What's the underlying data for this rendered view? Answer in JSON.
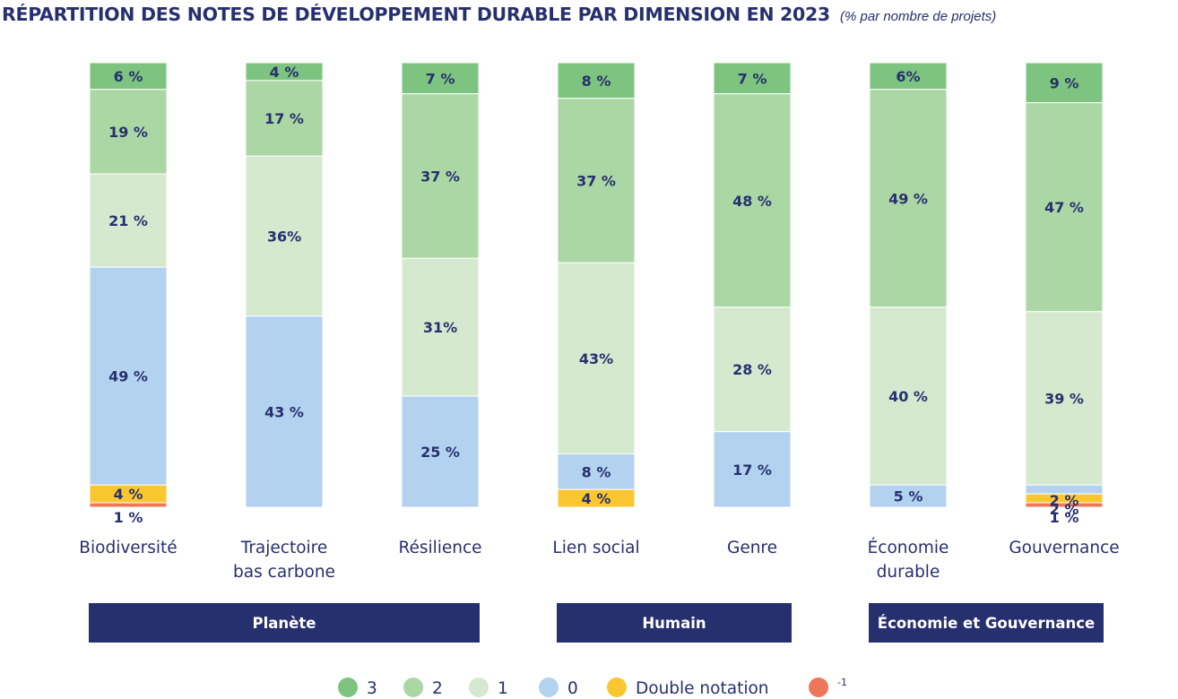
{
  "title": "RÉPARTITION DES NOTES DE DÉVELOPPEMENT DURABLE PAR DIMENSION EN 2023",
  "subtitle": "(% par nombre de projets)",
  "colors": {
    "3": "#7cc47f",
    "2": "#abd7a5",
    "1": "#d5e9cf",
    "0": "#b3d2f0",
    "double": "#fbc731",
    "minus1": "#ed775a",
    "text": "#27306e",
    "group": "#27306e"
  },
  "chart_data": {
    "type": "bar",
    "stacked": true,
    "categories": [
      [
        "Biodiversité"
      ],
      [
        "Trajectoire",
        "bas carbone"
      ],
      [
        "Résilience"
      ],
      [
        "Lien social"
      ],
      [
        "Genre"
      ],
      [
        "Économie",
        "durable"
      ],
      [
        "Gouvernance"
      ]
    ],
    "series": [
      {
        "name": "3",
        "key": "3",
        "values": [
          6,
          4,
          7,
          8,
          7,
          6,
          9
        ],
        "labels": [
          "6 %",
          "4 %",
          "7 %",
          "8 %",
          "7 %",
          "6%",
          "9 %"
        ]
      },
      {
        "name": "2",
        "key": "2",
        "values": [
          19,
          17,
          37,
          37,
          48,
          49,
          47
        ],
        "labels": [
          "19 %",
          "17 %",
          "37 %",
          "37 %",
          "48 %",
          "49 %",
          "47 %"
        ]
      },
      {
        "name": "1",
        "key": "1",
        "values": [
          21,
          36,
          31,
          43,
          28,
          40,
          39
        ],
        "labels": [
          "21 %",
          "36%",
          "31%",
          "43%",
          "28 %",
          "40 %",
          "39 %"
        ]
      },
      {
        "name": "0",
        "key": "0",
        "values": [
          49,
          43,
          25,
          8,
          17,
          5,
          2
        ],
        "labels": [
          "49 %",
          "43 %",
          "25 %",
          "8 %",
          "17 %",
          "5 %",
          "2 %"
        ]
      },
      {
        "name": "Double notation",
        "key": "double",
        "values": [
          4,
          0,
          0,
          4,
          0,
          0,
          2
        ],
        "labels": [
          "4 %",
          "",
          "",
          "4 %",
          "",
          "",
          "2 %"
        ]
      },
      {
        "name": "-1",
        "key": "minus1",
        "values": [
          1,
          0,
          0,
          0,
          0,
          0,
          1
        ],
        "labels": [
          "1 %",
          "",
          "",
          "",
          "",
          "",
          "1 %"
        ]
      }
    ],
    "groups": [
      {
        "label": "Planète",
        "from": 0,
        "to": 2
      },
      {
        "label": "Humain",
        "from": 3,
        "to": 4
      },
      {
        "label": "Économie et Gouvernance",
        "from": 5,
        "to": 6
      }
    ],
    "legend": [
      {
        "key": "3",
        "label": "3"
      },
      {
        "key": "2",
        "label": "2"
      },
      {
        "key": "1",
        "label": "1"
      },
      {
        "key": "0",
        "label": "0"
      },
      {
        "key": "double",
        "label": "Double notation"
      },
      {
        "key": "minus1",
        "label": "-1"
      }
    ],
    "legend_position": "bottom",
    "ylim": [
      0,
      100
    ],
    "grid": false
  }
}
